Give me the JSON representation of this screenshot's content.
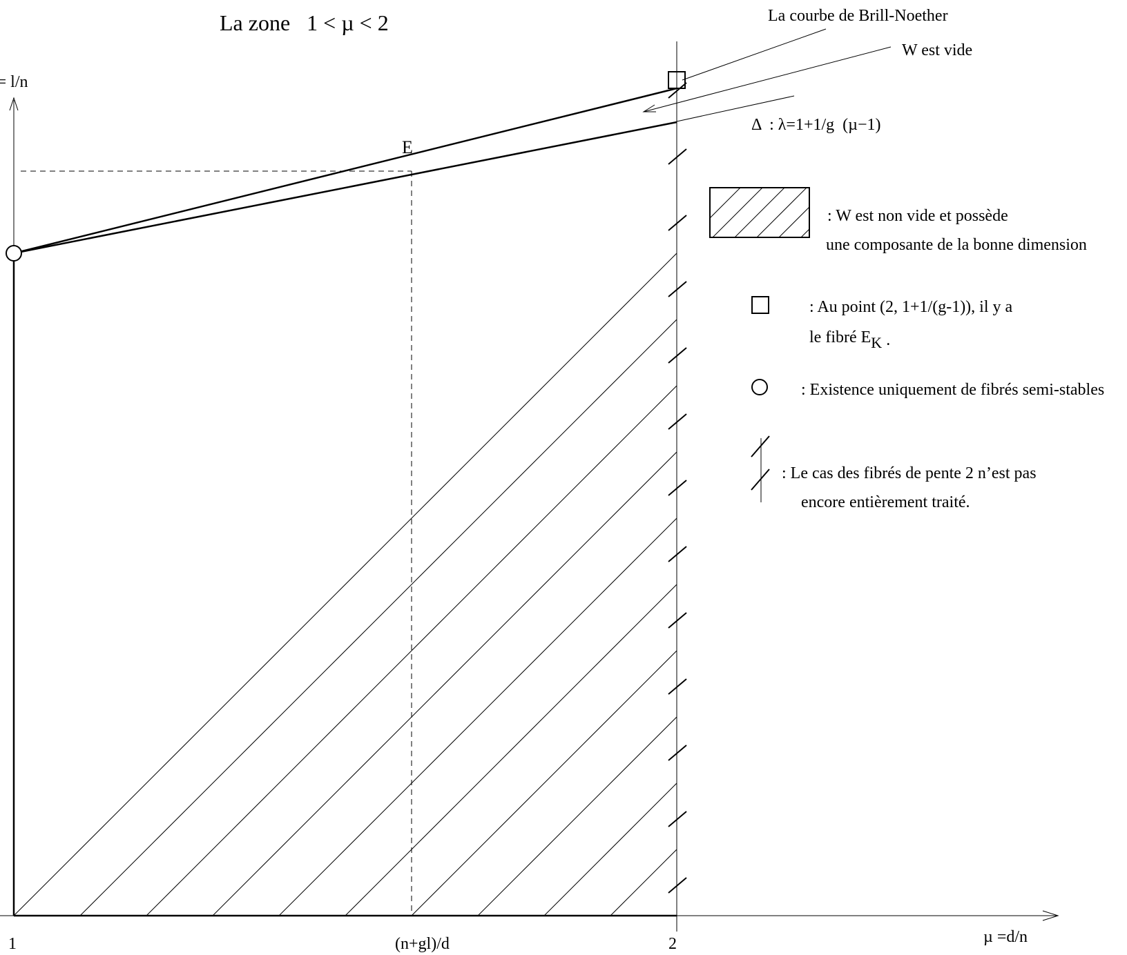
{
  "title": "La zone   1 < µ < 2",
  "axes": {
    "y_label": "λ = l/n",
    "x_label": "µ =d/n",
    "x_tick_1": "1",
    "x_tick_mid": "(n+gl)/d",
    "x_tick_2": "2"
  },
  "labels": {
    "point_E": "E",
    "brill_noether": "La courbe de Brill-Noether",
    "w_vide": "W est vide",
    "delta": "Δ  : λ=1+1/g  (µ−1)"
  },
  "legend": {
    "hatch_line1": ": W est non vide et possède",
    "hatch_line2": "une composante de la bonne dimension",
    "square_line1": ":  Au point (2, 1+1/(g-1)), il y a",
    "square_line2": "le fibré E",
    "square_sub": "K",
    "square_dot": " .",
    "circle_line1": ": Existence uniquement de fibrés semi-stables",
    "ticked_line1": ":  Le cas des fibrés de pente 2 n’est pas",
    "ticked_line2": "encore entièrement traité."
  }
}
